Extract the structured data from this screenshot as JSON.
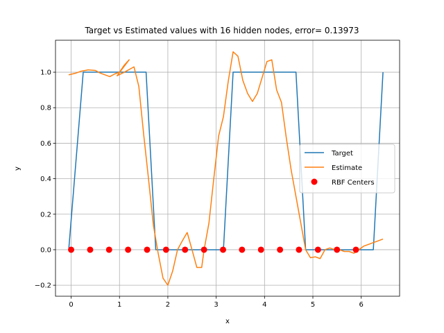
{
  "chart_data": {
    "type": "line",
    "title": "Target vs Estimated values with 16 hidden nodes, error= 0.13973",
    "xlabel": "x",
    "ylabel": "y",
    "xlim": [
      -0.3235,
      6.7935
    ],
    "ylim": [
      -0.262,
      1.18
    ],
    "xticks": [
      0,
      1,
      2,
      3,
      4,
      5,
      6
    ],
    "yticks": [
      -0.2,
      0.0,
      0.2,
      0.4,
      0.6,
      0.8,
      1.0
    ],
    "ytick_labels": [
      "−0.2",
      "0.0",
      "0.2",
      "0.4",
      "0.6",
      "0.8",
      "1.0"
    ],
    "grid": true,
    "legend": {
      "position": "center-right",
      "entries": [
        "Target",
        "Estimate",
        "RBF Centers"
      ]
    },
    "colors": {
      "target": "#1f77b4",
      "estimate": "#ff7f0e",
      "centers": "#ff0000"
    },
    "series": [
      {
        "name": "Target",
        "kind": "line",
        "x": [
          -0.05,
          0.25,
          1.55,
          1.75,
          3.15,
          3.35,
          4.65,
          4.85,
          6.25,
          6.45
        ],
        "y": [
          0,
          1,
          1,
          0,
          0,
          1,
          1,
          0,
          0,
          1
        ]
      },
      {
        "name": "Estimate",
        "kind": "line",
        "x": [
          -0.05,
          0.1,
          0.2,
          0.35,
          0.5,
          0.6,
          0.8,
          0.9,
          1.0,
          1.1,
          1.2,
          0.95,
          1.1,
          1.3,
          1.4,
          1.5,
          1.6,
          1.7,
          1.8,
          1.9,
          2.0,
          2.1,
          2.2,
          2.3,
          2.4,
          2.5,
          2.6,
          2.7,
          2.75,
          2.85,
          2.95,
          3.05,
          3.15,
          3.25,
          3.35,
          3.45,
          3.55,
          3.65,
          3.75,
          3.85,
          3.95,
          4.05,
          4.15,
          4.25,
          4.35,
          4.45,
          4.55,
          4.65,
          4.75,
          4.85,
          4.95,
          5.05,
          5.15,
          5.25,
          5.35,
          5.45,
          5.55,
          5.65,
          5.75,
          5.85,
          5.95,
          6.05,
          6.15,
          6.25,
          6.35,
          6.45
        ],
        "y": [
          0.985,
          0.995,
          1.005,
          1.013,
          1.01,
          0.995,
          0.975,
          0.99,
          1.0,
          1.04,
          1.07,
          0.98,
          1.0,
          1.03,
          0.92,
          0.65,
          0.4,
          0.14,
          -0.02,
          -0.16,
          -0.2,
          -0.12,
          0.0,
          0.05,
          0.097,
          0.0,
          -0.1,
          -0.1,
          0.0,
          0.15,
          0.4,
          0.64,
          0.75,
          0.95,
          1.115,
          1.09,
          0.955,
          0.88,
          0.835,
          0.88,
          0.97,
          1.06,
          1.07,
          0.9,
          0.83,
          0.63,
          0.45,
          0.3,
          0.15,
          0.0,
          -0.045,
          -0.04,
          -0.05,
          0.0,
          0.01,
          0.0,
          0.0,
          -0.01,
          -0.01,
          -0.02,
          0.0,
          0.02,
          0.03,
          0.04,
          0.05,
          0.06
        ]
      },
      {
        "name": "RBF Centers",
        "kind": "scatter",
        "x": [
          0.0,
          0.393,
          0.785,
          1.178,
          1.571,
          1.963,
          2.356,
          2.749,
          3.142,
          3.534,
          3.927,
          4.32,
          4.712,
          5.105,
          5.498,
          5.89
        ],
        "y": [
          0,
          0,
          0,
          0,
          0,
          0,
          0,
          0,
          0,
          0,
          0,
          0,
          0,
          0,
          0,
          0
        ]
      }
    ]
  }
}
